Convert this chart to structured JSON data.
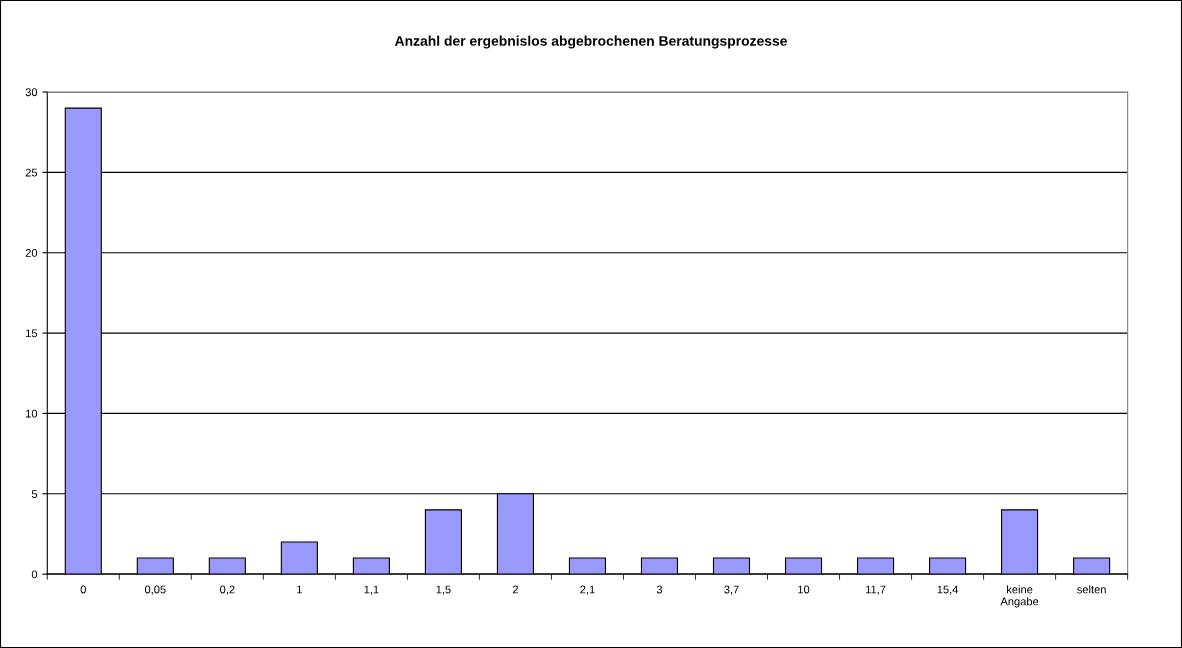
{
  "chart_data": {
    "type": "bar",
    "title": "Anzahl der ergebnislos abgebrochenen Beratungsprozesse",
    "categories": [
      "0",
      "0,05",
      "0,2",
      "1",
      "1,1",
      "1,5",
      "2",
      "2,1",
      "3",
      "3,7",
      "10",
      "11,7",
      "15,4",
      "keine\nAngabe",
      "selten"
    ],
    "values": [
      29,
      1,
      1,
      2,
      1,
      4,
      5,
      1,
      1,
      1,
      1,
      1,
      1,
      4,
      1
    ],
    "color": "#9999ff",
    "ylim": [
      0,
      30
    ],
    "yticks": [
      0,
      5,
      10,
      15,
      20,
      25,
      30
    ],
    "grid": "y"
  }
}
